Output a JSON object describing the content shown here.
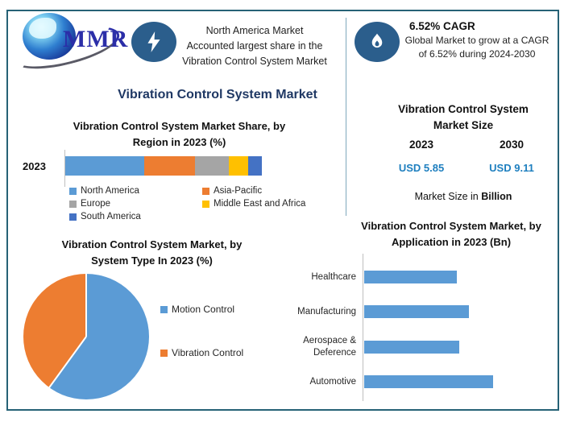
{
  "header": {
    "logo": {
      "text": "MMR",
      "icon": "globe-swoosh"
    },
    "highlight_box": {
      "icon": "lightning-bolt",
      "lines": [
        "North America Market",
        "Accounted largest share in the",
        "Vibration Control System Market"
      ]
    },
    "cagr_box": {
      "icon": "flame",
      "heading": "6.52% CAGR",
      "body": "Global Market to grow at a CAGR of 6.52% during 2024-2030"
    }
  },
  "main_title": "Vibration Control System Market",
  "market_size": {
    "title": "Vibration Control System Market Size",
    "title_lines": [
      "Vibration Control System",
      "Market Size"
    ],
    "columns": [
      {
        "year": "2023",
        "value": "USD 5.85"
      },
      {
        "year": "2030",
        "value": "USD 9.11"
      }
    ],
    "note_prefix": "Market Size in ",
    "note_bold": "Billion",
    "value_color": "#1E7FBF"
  },
  "colors": {
    "frame_border": "#266276",
    "divider": "#7FA8BC",
    "icon_circle": "#2B5E8C",
    "main_title": "#1F3864",
    "value_blue": "#1E7FBF",
    "bar_blue": "#5B9BD5",
    "orange": "#ED7D31",
    "gray": "#A5A5A5",
    "yellow": "#FFC000",
    "dark_blue": "#4472C4",
    "axis_line": "#BFBFBF"
  },
  "chart_data": [
    {
      "id": "region-share",
      "type": "bar",
      "variant": "stacked-horizontal",
      "title": "Vibration Control System Market Share, by Region in 2023 (%)",
      "title_lines": [
        "Vibration Control System Market Share, by",
        "Region in 2023 (%)"
      ],
      "categories": [
        "2023"
      ],
      "series": [
        {
          "name": "North America",
          "color": "#5B9BD5",
          "values": [
            40
          ]
        },
        {
          "name": "Asia-Pacific",
          "color": "#ED7D31",
          "values": [
            26
          ]
        },
        {
          "name": "Europe",
          "color": "#A5A5A5",
          "values": [
            17
          ]
        },
        {
          "name": "Middle East and Africa",
          "color": "#FFC000",
          "values": [
            10
          ]
        },
        {
          "name": "South America",
          "color": "#4472C4",
          "values": [
            7
          ]
        }
      ],
      "unit": "%",
      "legend_position": "bottom",
      "grid": false
    },
    {
      "id": "system-type",
      "type": "pie",
      "title": "Vibration Control System Market, by System Type In 2023 (%)",
      "title_lines": [
        "Vibration Control System Market, by",
        "System Type In 2023 (%)"
      ],
      "slices": [
        {
          "label": "Motion Control",
          "value": 60,
          "color": "#5B9BD5"
        },
        {
          "label": "Vibration Control",
          "value": 40,
          "color": "#ED7D31"
        }
      ],
      "unit": "%",
      "start_angle_deg": 0,
      "direction": "clockwise",
      "legend_position": "right"
    },
    {
      "id": "application",
      "type": "bar",
      "variant": "horizontal",
      "title": "Vibration Control System Market, by Application in 2023 (Bn)",
      "title_lines": [
        "Vibration Control System Market, by",
        "Application in 2023 (Bn)"
      ],
      "categories": [
        "Healthcare",
        "Manufacturing",
        "Aerospace & Deference",
        "Automotive"
      ],
      "values_relative_to_max": [
        0.72,
        0.81,
        0.74,
        1.0
      ],
      "unit": "Bn",
      "bar_color": "#5B9BD5",
      "grid": false
    }
  ]
}
